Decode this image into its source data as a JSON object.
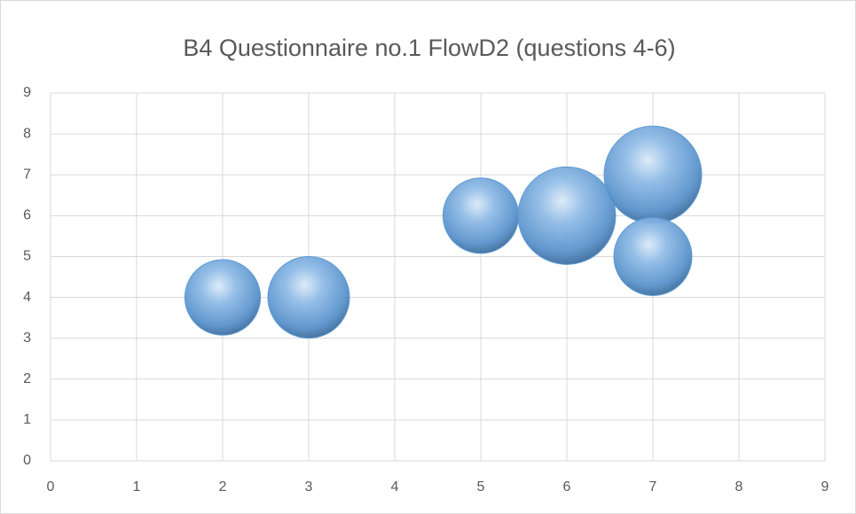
{
  "chart_data": {
    "type": "bubble",
    "title": "B4 Questionnaire no.1 FlowD2 (questions 4-6)",
    "x": [
      2,
      3,
      5,
      6,
      7,
      7
    ],
    "values": [
      4,
      4,
      6,
      6,
      7,
      5
    ],
    "sizes": [
      3,
      3.5,
      3,
      5,
      5,
      3.2
    ],
    "color": "#5b9bd5",
    "xlim": [
      0,
      9
    ],
    "xticks": [
      0,
      1,
      2,
      3,
      4,
      5,
      6,
      7,
      8,
      9
    ],
    "ylim": [
      0,
      9
    ],
    "yticks": [
      0,
      1,
      2,
      3,
      4,
      5,
      6,
      7,
      8,
      9
    ],
    "grid": true
  }
}
